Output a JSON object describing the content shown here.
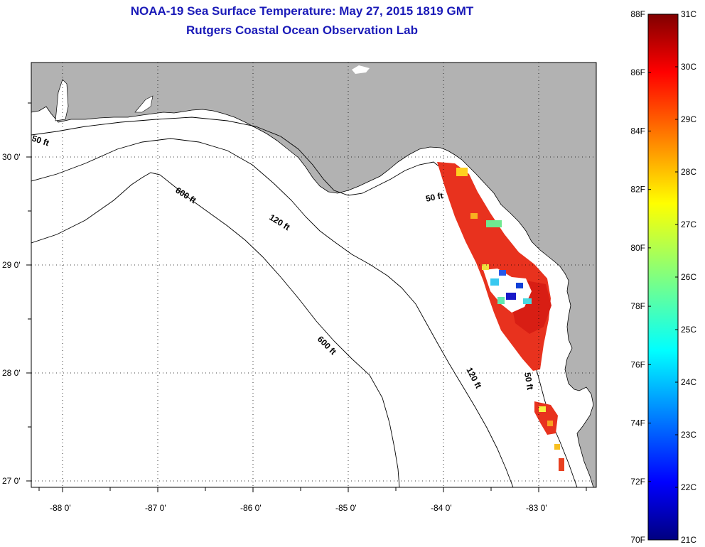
{
  "header": {
    "title": "NOAA-19 Sea Surface Temperature:  May 27, 2015 1819 GMT",
    "subtitle": "Rutgers Coastal Ocean Observation Lab"
  },
  "axes": {
    "lat_ticks": [
      "30 0'",
      "29 0'",
      "28 0'",
      "27 0'"
    ],
    "lon_ticks": [
      "-88 0'",
      "-87 0'",
      "-86 0'",
      "-85 0'",
      "-84 0'",
      "-83 0'"
    ]
  },
  "contours": {
    "c50_nw": "50 ft",
    "c600_n": "600 ft",
    "c120_n": "120 ft",
    "c50_e": "50 ft",
    "c600_s": "600 ft",
    "c120_s": "120 ft",
    "c50_se": "50 ft"
  },
  "colorbar": {
    "f_labels": [
      "88F",
      "86F",
      "84F",
      "82F",
      "80F",
      "78F",
      "76F",
      "74F",
      "72F",
      "70F"
    ],
    "c_labels": [
      "31C",
      "30C",
      "29C",
      "28C",
      "27C",
      "26C",
      "25C",
      "24C",
      "23C",
      "22C",
      "21C"
    ],
    "range_f": [
      70,
      88
    ],
    "range_c": [
      21,
      31
    ]
  },
  "colors": {
    "land": "#b2b2b2",
    "title": "#1a1ab8",
    "sst_hot": "#e8321e"
  }
}
